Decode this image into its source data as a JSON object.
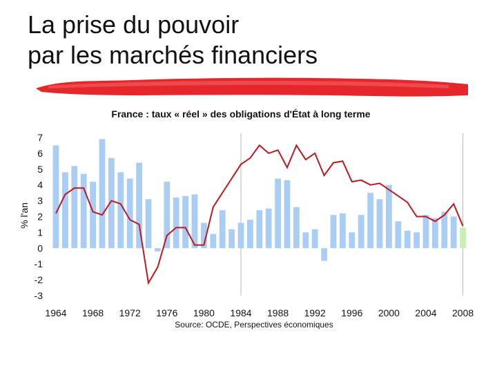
{
  "slide": {
    "title_line1": "La prise du pouvoir",
    "title_line2": "par les marchés financiers"
  },
  "colors": {
    "bar": "#a9cdf3",
    "bar_last": "#c8efb8",
    "line": "#c0161d",
    "brush": "#e5262b",
    "gridline": "#b8b8b8"
  },
  "chart_data": {
    "type": "bar",
    "title": "France : taux « réel » des obligations d'État à long terme",
    "ylabel": "% l'an",
    "source": "Source: OCDE, Perspectives économiques",
    "ylim": [
      -3,
      7
    ],
    "yticks": [
      "7",
      "6",
      "5",
      "4",
      "3",
      "2",
      "1",
      "0",
      "-1",
      "-2",
      "-3"
    ],
    "xticks": [
      "1964",
      "1968",
      "1972",
      "1976",
      "1980",
      "1984",
      "1988",
      "1992",
      "1996",
      "2000",
      "2004",
      "2008"
    ],
    "x": [
      1964,
      1965,
      1966,
      1967,
      1968,
      1969,
      1970,
      1971,
      1972,
      1973,
      1974,
      1975,
      1976,
      1977,
      1978,
      1979,
      1980,
      1981,
      1982,
      1983,
      1984,
      1985,
      1986,
      1987,
      1988,
      1989,
      1990,
      1991,
      1992,
      1993,
      1994,
      1995,
      1996,
      1997,
      1998,
      1999,
      2000,
      2001,
      2002,
      2003,
      2004,
      2005,
      2006,
      2007,
      2008
    ],
    "vertical_lines": [
      1984,
      2008
    ],
    "grid": false,
    "series": [
      {
        "type": "bar",
        "values": [
          6.5,
          4.8,
          5.2,
          4.7,
          4.2,
          6.9,
          5.7,
          4.8,
          4.4,
          5.4,
          3.1,
          -0.2,
          4.2,
          3.2,
          3.3,
          3.4,
          1.6,
          0.9,
          2.4,
          1.2,
          1.6,
          1.8,
          2.4,
          2.5,
          4.4,
          4.3,
          2.6,
          1.0,
          1.2,
          -0.8,
          2.1,
          2.2,
          1.0,
          2.1,
          3.5,
          3.1,
          4.0,
          1.7,
          1.1,
          1.0,
          2.1,
          1.9,
          2.3,
          2.0,
          1.3
        ]
      },
      {
        "type": "line",
        "values": [
          2.2,
          3.4,
          3.8,
          3.8,
          2.3,
          2.1,
          3.0,
          2.8,
          1.8,
          1.5,
          -2.2,
          -1.2,
          0.8,
          1.3,
          1.3,
          0.2,
          0.2,
          2.6,
          3.5,
          4.4,
          5.3,
          5.7,
          6.5,
          6.0,
          6.2,
          5.1,
          6.5,
          5.6,
          6.0,
          4.6,
          5.4,
          5.5,
          4.2,
          4.3,
          4.0,
          4.1,
          3.7,
          3.3,
          2.9,
          2.0,
          2.0,
          1.7,
          2.1,
          2.8,
          1.4
        ]
      }
    ]
  }
}
